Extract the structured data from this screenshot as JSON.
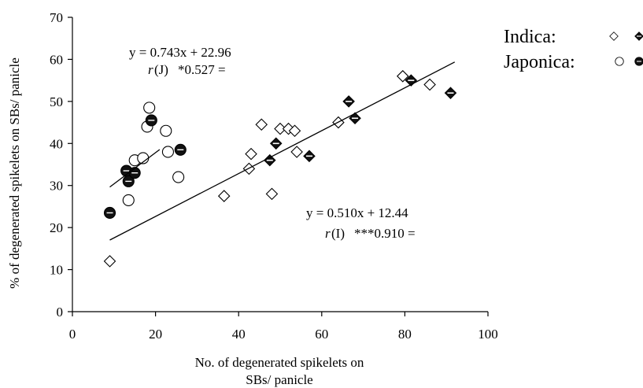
{
  "chart_data": {
    "type": "scatter",
    "title": "",
    "xlabel_lines": [
      "No. of degenerated spikelets on",
      "SBs/ panicle"
    ],
    "ylabel": "% of degenerated spikelets on SBs/ panicle",
    "xlim": [
      0,
      100
    ],
    "ylim": [
      0,
      70
    ],
    "xticks": [
      "0",
      "20",
      "40",
      "60",
      "80",
      "100"
    ],
    "yticks": [
      "0",
      "10",
      "20",
      "30",
      "40",
      "50",
      "60",
      "70"
    ],
    "grid": false,
    "legend_position": "top-right",
    "legend": [
      {
        "label": "Indica:",
        "group": "indica"
      },
      {
        "label": "Japonica:",
        "group": "japonica"
      }
    ],
    "series": [
      {
        "group": "indica",
        "variety": "open",
        "marker": "diamond-open",
        "points": [
          [
            9,
            12
          ],
          [
            36.5,
            27.5
          ],
          [
            42.5,
            34
          ],
          [
            43,
            37.5
          ],
          [
            45.5,
            44.5
          ],
          [
            48,
            28
          ],
          [
            50,
            43.5
          ],
          [
            52,
            43.5
          ],
          [
            53.5,
            43
          ],
          [
            54,
            38
          ],
          [
            64,
            45
          ],
          [
            79.5,
            56
          ],
          [
            86,
            54
          ]
        ]
      },
      {
        "group": "indica",
        "variety": "filled",
        "marker": "diamond-filled",
        "points": [
          [
            47.5,
            36
          ],
          [
            49,
            40
          ],
          [
            57,
            37
          ],
          [
            66.5,
            50
          ],
          [
            68,
            46
          ],
          [
            81.5,
            55
          ],
          [
            91,
            52
          ]
        ]
      },
      {
        "group": "japonica",
        "variety": "open",
        "marker": "circle-open",
        "points": [
          [
            13.5,
            26.5
          ],
          [
            15,
            36
          ],
          [
            17,
            36.5
          ],
          [
            18,
            44
          ],
          [
            18.5,
            48.5
          ],
          [
            22.5,
            43
          ],
          [
            23,
            38
          ],
          [
            25.5,
            32
          ]
        ]
      },
      {
        "group": "japonica",
        "variety": "filled",
        "marker": "circle-filled",
        "points": [
          [
            9,
            23.5
          ],
          [
            13,
            33.5
          ],
          [
            13.5,
            31
          ],
          [
            15,
            33
          ],
          [
            19,
            45.5
          ],
          [
            26,
            38.5
          ]
        ]
      }
    ],
    "fits": [
      {
        "group": "japonica",
        "slope": 0.743,
        "intercept": 22.96,
        "x_range": [
          9,
          21
        ]
      },
      {
        "group": "indica",
        "slope": 0.51,
        "intercept": 12.44,
        "x_range": [
          9,
          92
        ]
      }
    ],
    "annotations": [
      {
        "lines": [
          "y = 0.743x + 22.96",
          "*0.527 ="
        ],
        "r_label": "r(J)"
      },
      {
        "lines": [
          "y = 0.510x + 12.44",
          "***0.910 ="
        ],
        "r_label": "r(I)"
      }
    ]
  }
}
